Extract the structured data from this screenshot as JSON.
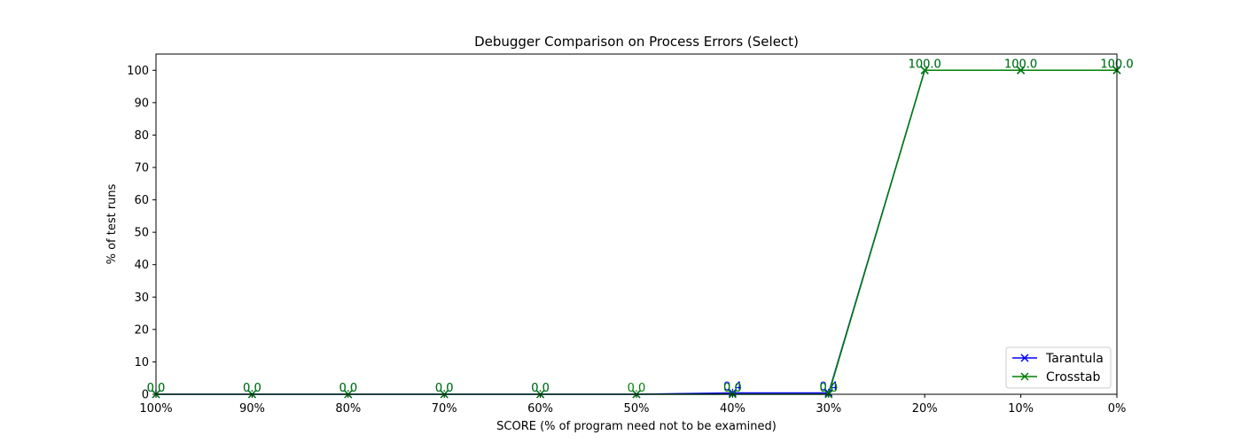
{
  "chart_data": {
    "type": "line",
    "title": "Debugger Comparison on Process Errors (Select)",
    "xlabel": "SCORE (% of program need not to be examined)",
    "ylabel": "% of test runs",
    "categories": [
      "100%",
      "90%",
      "80%",
      "70%",
      "60%",
      "50%",
      "40%",
      "30%",
      "20%",
      "10%",
      "0%"
    ],
    "yticks": [
      0,
      10,
      20,
      30,
      40,
      50,
      60,
      70,
      80,
      90,
      100
    ],
    "ylim": [
      0,
      105
    ],
    "grid": false,
    "legend_position": "lower-right",
    "series": [
      {
        "name": "Tarantula",
        "color": "#0000ff",
        "marker": "x",
        "values": [
          0.0,
          0.0,
          0.0,
          0.0,
          0.0,
          0.0,
          0.4,
          0.4,
          100.0,
          100.0,
          100.0
        ],
        "labels": [
          "0.0",
          "0.0",
          "0.0",
          "0.0",
          "0.0",
          "",
          "0.4",
          "0.4",
          "100.0",
          "100.0",
          "100.0"
        ]
      },
      {
        "name": "Crosstab",
        "color": "#008000",
        "marker": "x",
        "values": [
          0.0,
          0.0,
          0.0,
          0.0,
          0.0,
          0.0,
          0.0,
          0.0,
          100.0,
          100.0,
          100.0
        ],
        "labels": [
          "0.0",
          "0.0",
          "0.0",
          "0.0",
          "0.0",
          "0.0",
          "0.0",
          "0.0",
          "100.0",
          "100.0",
          "100.0"
        ]
      }
    ]
  }
}
